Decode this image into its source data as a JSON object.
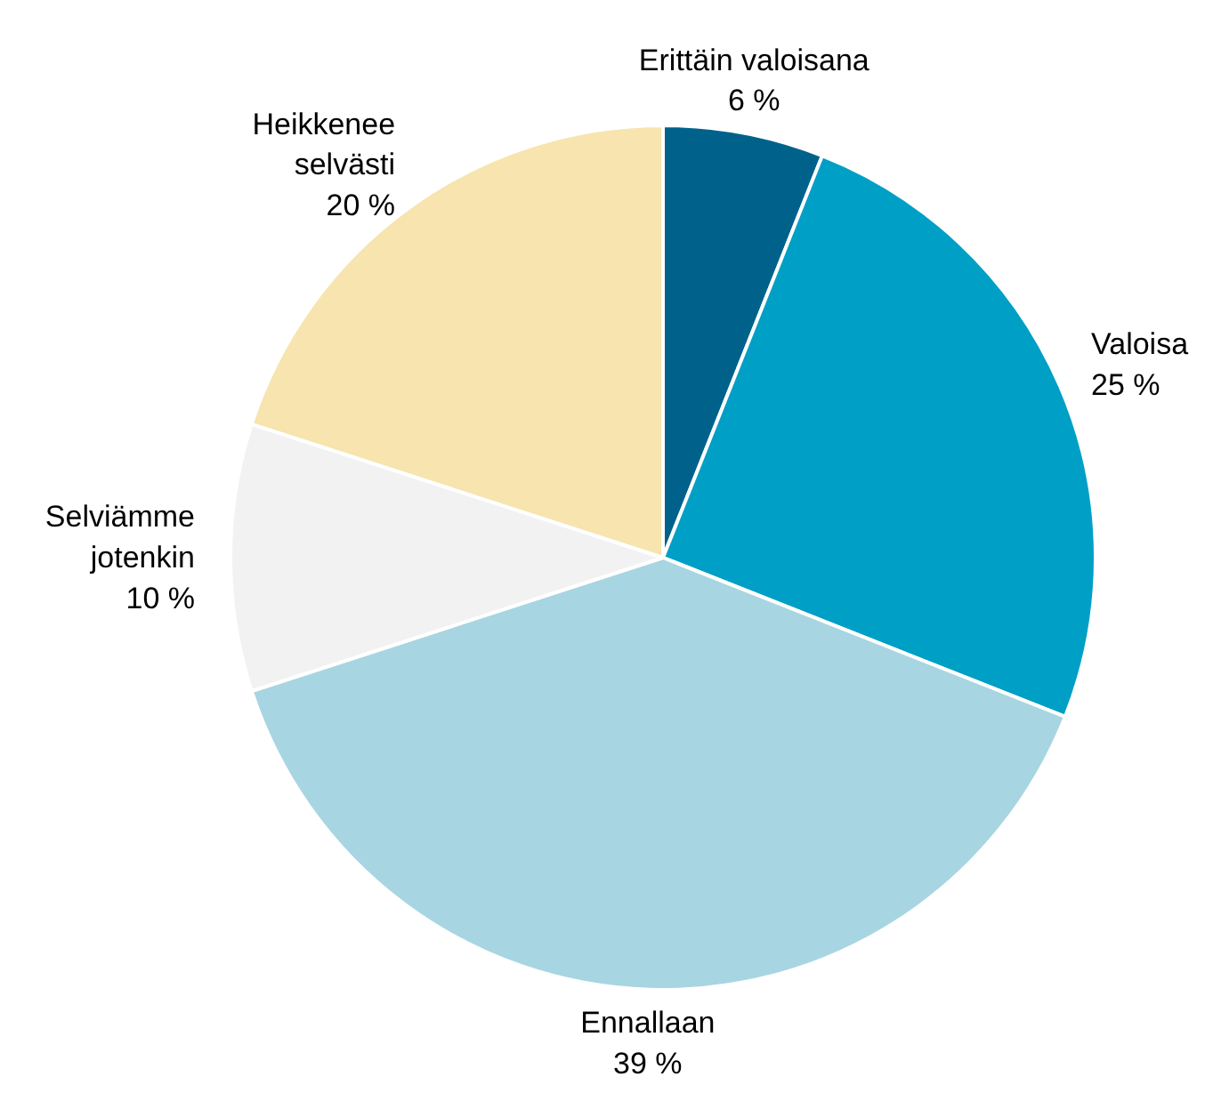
{
  "chart_data": {
    "type": "pie",
    "categories": [
      "Erittäin valoisana",
      "Valoisa",
      "Ennallaan",
      "Selviämme\njotenkin",
      "Heikkenee\nselvästi"
    ],
    "values": [
      6,
      25,
      39,
      10,
      20
    ],
    "value_labels": [
      "6 %",
      "25 %",
      "39 %",
      "10 %",
      "20 %"
    ],
    "colors": [
      "#00628b",
      "#009fc6",
      "#a8d5e2",
      "#f2f2f2",
      "#f7e4ae"
    ]
  }
}
